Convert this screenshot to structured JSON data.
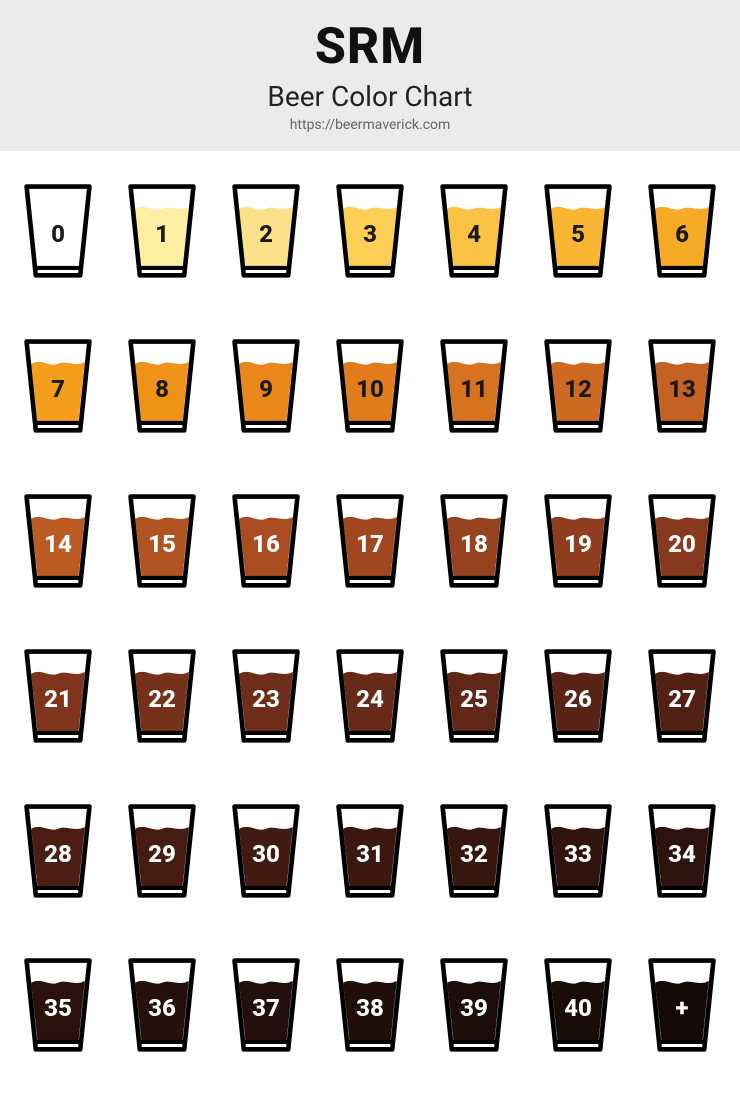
{
  "header": {
    "title": "SRM",
    "subtitle": "Beer Color Chart",
    "url": "https://beermaverick.com",
    "bg_color": "#ebebeb",
    "title_color": "#111111",
    "subtitle_color": "#222222",
    "url_color": "#666666",
    "title_fontsize": 50,
    "subtitle_fontsize": 28,
    "url_fontsize": 14
  },
  "chart": {
    "type": "infographic",
    "layout": {
      "cols": 7,
      "rows": 6,
      "glass_stroke": "#000000",
      "glass_stroke_width": 5,
      "background": "#ffffff"
    },
    "dark_label_color": "#1a1a1a",
    "light_label_color": "#ffffff",
    "label_fontsize": 26,
    "items": [
      {
        "label": "0",
        "fill": "#ffffff",
        "text": "dark"
      },
      {
        "label": "1",
        "fill": "#fdeea2",
        "text": "dark"
      },
      {
        "label": "2",
        "fill": "#fde08a",
        "text": "dark"
      },
      {
        "label": "3",
        "fill": "#fccf54",
        "text": "dark"
      },
      {
        "label": "4",
        "fill": "#fbc244",
        "text": "dark"
      },
      {
        "label": "5",
        "fill": "#f9b632",
        "text": "dark"
      },
      {
        "label": "6",
        "fill": "#f7aa26",
        "text": "dark"
      },
      {
        "label": "7",
        "fill": "#f49e1c",
        "text": "dark"
      },
      {
        "label": "8",
        "fill": "#ef9218",
        "text": "dark"
      },
      {
        "label": "9",
        "fill": "#e9871a",
        "text": "dark"
      },
      {
        "label": "10",
        "fill": "#e07c1c",
        "text": "dark"
      },
      {
        "label": "11",
        "fill": "#d7721f",
        "text": "dark"
      },
      {
        "label": "12",
        "fill": "#ce6921",
        "text": "dark"
      },
      {
        "label": "13",
        "fill": "#c56122",
        "text": "dark"
      },
      {
        "label": "14",
        "fill": "#bb5a22",
        "text": "light"
      },
      {
        "label": "15",
        "fill": "#b25322",
        "text": "light"
      },
      {
        "label": "16",
        "fill": "#a94d21",
        "text": "light"
      },
      {
        "label": "17",
        "fill": "#a04720",
        "text": "light"
      },
      {
        "label": "18",
        "fill": "#97421f",
        "text": "light"
      },
      {
        "label": "19",
        "fill": "#8e3d1e",
        "text": "light"
      },
      {
        "label": "20",
        "fill": "#86391d",
        "text": "light"
      },
      {
        "label": "21",
        "fill": "#7e351c",
        "text": "light"
      },
      {
        "label": "22",
        "fill": "#76311a",
        "text": "light"
      },
      {
        "label": "23",
        "fill": "#6e2d19",
        "text": "light"
      },
      {
        "label": "24",
        "fill": "#672a18",
        "text": "light"
      },
      {
        "label": "25",
        "fill": "#602717",
        "text": "light"
      },
      {
        "label": "26",
        "fill": "#592415",
        "text": "light"
      },
      {
        "label": "27",
        "fill": "#522114",
        "text": "light"
      },
      {
        "label": "28",
        "fill": "#4c1e13",
        "text": "light"
      },
      {
        "label": "29",
        "fill": "#461c12",
        "text": "light"
      },
      {
        "label": "30",
        "fill": "#411a11",
        "text": "light"
      },
      {
        "label": "31",
        "fill": "#3c1810",
        "text": "light"
      },
      {
        "label": "32",
        "fill": "#37160f",
        "text": "light"
      },
      {
        "label": "33",
        "fill": "#32140e",
        "text": "light"
      },
      {
        "label": "34",
        "fill": "#2e120d",
        "text": "light"
      },
      {
        "label": "35",
        "fill": "#2a110c",
        "text": "light"
      },
      {
        "label": "36",
        "fill": "#26100b",
        "text": "light"
      },
      {
        "label": "37",
        "fill": "#230f0b",
        "text": "light"
      },
      {
        "label": "38",
        "fill": "#200e0a",
        "text": "light"
      },
      {
        "label": "39",
        "fill": "#1d0d0a",
        "text": "light"
      },
      {
        "label": "40",
        "fill": "#1a0c09",
        "text": "light"
      },
      {
        "label": "+",
        "fill": "#150a08",
        "text": "light"
      }
    ]
  }
}
